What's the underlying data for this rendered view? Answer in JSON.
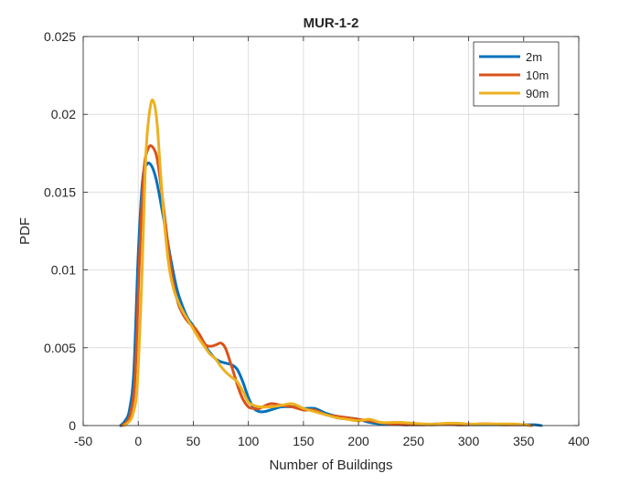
{
  "chart_data": {
    "type": "line",
    "title": "MUR-1-2",
    "xlabel": "Number of Buildings",
    "ylabel": "PDF",
    "xlim": [
      -50,
      400
    ],
    "ylim": [
      0,
      0.025
    ],
    "xticks": [
      -50,
      0,
      50,
      100,
      150,
      200,
      250,
      300,
      350,
      400
    ],
    "xtick_labels": [
      "-50",
      "0",
      "50",
      "100",
      "150",
      "200",
      "250",
      "300",
      "350",
      "400"
    ],
    "yticks": [
      0,
      0.005,
      0.01,
      0.015,
      0.02,
      0.025
    ],
    "ytick_labels": [
      "0",
      "0.005",
      "0.01",
      "0.015",
      "0.02",
      "0.025"
    ],
    "grid": true,
    "legend_position": "top-right",
    "series": [
      {
        "name": "2m",
        "color": "#0072BD",
        "x": [
          -16,
          -12,
          -8,
          -4,
          0,
          4,
          8,
          12,
          16,
          20,
          25,
          30,
          35,
          40,
          45,
          50,
          55,
          60,
          65,
          70,
          75,
          80,
          85,
          90,
          95,
          100,
          105,
          110,
          115,
          120,
          130,
          140,
          150,
          160,
          170,
          180,
          190,
          200,
          210,
          220,
          230,
          240,
          250,
          260,
          270,
          280,
          290,
          300,
          310,
          320,
          330,
          340,
          350,
          360,
          366
        ],
        "y": [
          0.0,
          0.0003,
          0.001,
          0.0035,
          0.011,
          0.0158,
          0.0168,
          0.0167,
          0.0159,
          0.0145,
          0.0125,
          0.0105,
          0.0088,
          0.0077,
          0.0069,
          0.0064,
          0.0058,
          0.0052,
          0.0047,
          0.0043,
          0.0041,
          0.004,
          0.0039,
          0.0036,
          0.0028,
          0.0018,
          0.0011,
          0.0009,
          0.0009,
          0.001,
          0.0012,
          0.0012,
          0.0011,
          0.0011,
          0.0008,
          0.0006,
          0.0005,
          0.0004,
          0.0002,
          0.0001,
          0.0001,
          5e-05,
          5e-05,
          5e-05,
          0.0001,
          0.0001,
          5e-05,
          5e-05,
          5e-05,
          5e-05,
          5e-05,
          5e-05,
          5e-05,
          5e-05,
          0.0
        ]
      },
      {
        "name": "10m",
        "color": "#D95319",
        "x": [
          -15,
          -11,
          -7,
          -3,
          1,
          5,
          9,
          13,
          17,
          21,
          26,
          31,
          36,
          41,
          46,
          51,
          56,
          61,
          66,
          71,
          75,
          79,
          83,
          87,
          91,
          95,
          100,
          105,
          110,
          120,
          130,
          140,
          150,
          160,
          170,
          180,
          190,
          200,
          210,
          220,
          230,
          240,
          250,
          260,
          270,
          280,
          290,
          300,
          310,
          320,
          330,
          340,
          350,
          357
        ],
        "y": [
          0.0,
          0.0002,
          0.0008,
          0.003,
          0.0105,
          0.0163,
          0.0178,
          0.0179,
          0.0172,
          0.0152,
          0.0122,
          0.0095,
          0.0079,
          0.0071,
          0.0066,
          0.0063,
          0.0058,
          0.0052,
          0.0051,
          0.0052,
          0.0053,
          0.005,
          0.0042,
          0.0033,
          0.0024,
          0.0017,
          0.0012,
          0.0011,
          0.0011,
          0.0014,
          0.0013,
          0.0012,
          0.001,
          0.001,
          0.0007,
          0.0006,
          0.0005,
          0.0004,
          0.0003,
          0.0002,
          0.0001,
          5e-05,
          5e-05,
          5e-05,
          5e-05,
          0.0001,
          5e-05,
          5e-05,
          0.0001,
          0.0001,
          5e-05,
          5e-05,
          5e-05,
          0.0
        ]
      },
      {
        "name": "90m",
        "color": "#EDB120",
        "x": [
          -13,
          -9,
          -5,
          -1,
          3,
          7,
          11,
          14,
          17,
          20,
          24,
          28,
          32,
          36,
          40,
          45,
          50,
          55,
          60,
          65,
          70,
          75,
          80,
          85,
          90,
          95,
          100,
          105,
          110,
          120,
          130,
          140,
          150,
          160,
          170,
          180,
          190,
          200,
          210,
          220,
          230,
          240,
          250,
          260,
          270,
          280,
          290,
          300,
          310,
          320,
          330,
          340,
          350,
          355
        ],
        "y": [
          0.0,
          0.0002,
          0.0007,
          0.0025,
          0.009,
          0.0175,
          0.0205,
          0.0208,
          0.0195,
          0.0165,
          0.0128,
          0.0102,
          0.0088,
          0.008,
          0.0074,
          0.0068,
          0.0062,
          0.0056,
          0.0051,
          0.0046,
          0.0043,
          0.0038,
          0.0034,
          0.0031,
          0.0028,
          0.0022,
          0.0015,
          0.0013,
          0.0012,
          0.0012,
          0.0013,
          0.0014,
          0.0011,
          0.0009,
          0.0007,
          0.0005,
          0.0004,
          0.0003,
          0.0004,
          0.0002,
          0.0002,
          0.0002,
          0.00015,
          0.0001,
          0.0001,
          0.00015,
          0.00015,
          0.0001,
          0.0001,
          0.0001,
          0.0001,
          0.0001,
          5e-05,
          0.0
        ]
      }
    ]
  }
}
